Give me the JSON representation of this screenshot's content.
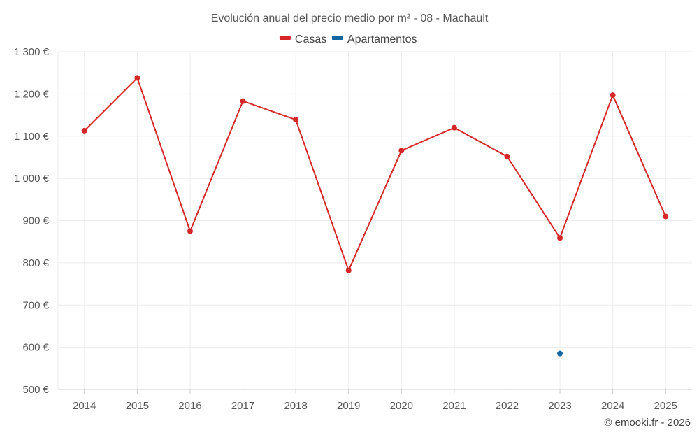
{
  "chart_data": {
    "type": "line",
    "title": "Evolución anual del precio medio por m² - 08 - Machault",
    "categories": [
      "2014",
      "2015",
      "2016",
      "2017",
      "2018",
      "2019",
      "2020",
      "2021",
      "2022",
      "2023",
      "2024",
      "2025"
    ],
    "series": [
      {
        "name": "Casas",
        "color": "#d62728",
        "values": [
          1113,
          1238,
          875,
          1183,
          1139,
          782,
          1066,
          1120,
          1052,
          859,
          1197,
          910
        ]
      },
      {
        "name": "Apartamentos",
        "color": "#1565a0",
        "values": [
          null,
          null,
          null,
          null,
          null,
          null,
          null,
          null,
          null,
          585,
          null,
          null
        ]
      }
    ],
    "y_ticks": [
      500,
      600,
      700,
      800,
      900,
      1000,
      1100,
      1200,
      1300
    ],
    "y_tick_labels": [
      "500 €",
      "600 €",
      "700 €",
      "800 €",
      "900 €",
      "1 000 €",
      "1 100 €",
      "1 200 €",
      "1 300 €"
    ],
    "ylim": [
      500,
      1300
    ],
    "xlabel": "",
    "ylabel": "",
    "legend_position": "top-center",
    "grid": true
  },
  "credit": "© emooki.fr - 2026"
}
